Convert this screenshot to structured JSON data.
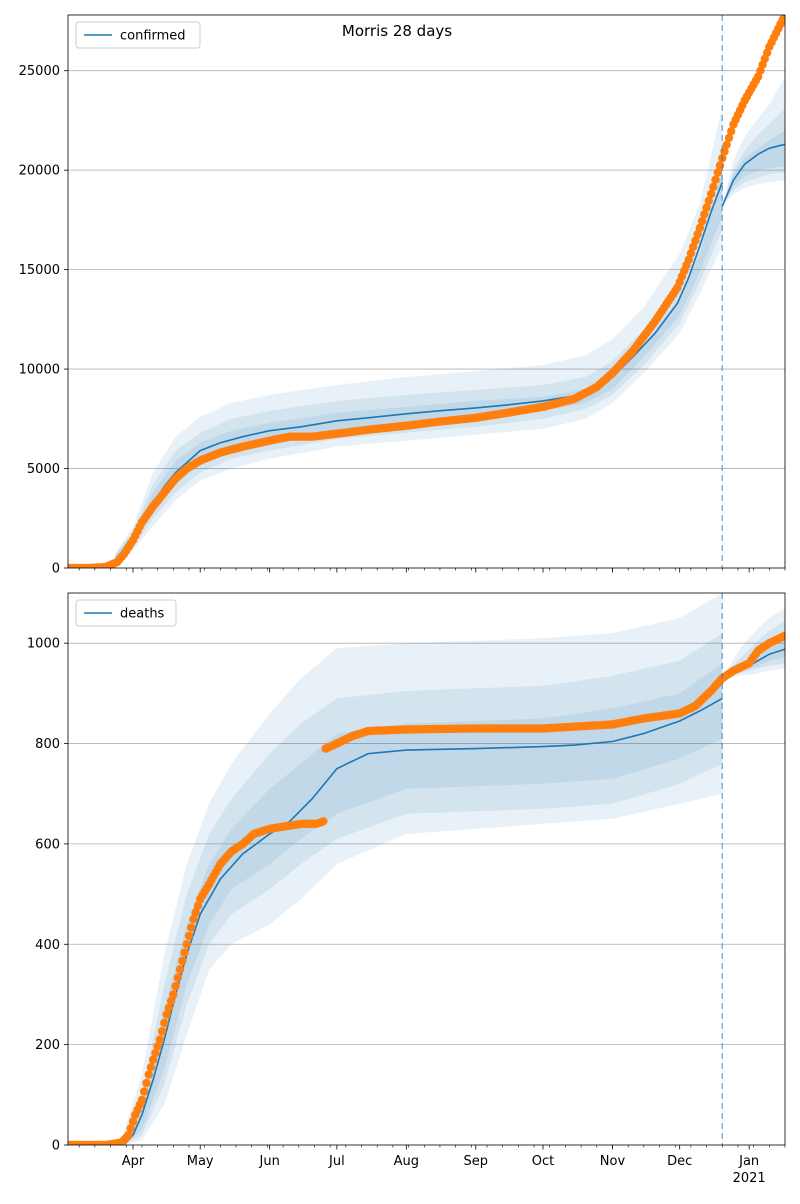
{
  "colors": {
    "model": "#1f77b4",
    "observed": "#ff7f0e",
    "band": "#1f77b4",
    "grid": "#b0b0b0",
    "forecast_line": "#1f77b4"
  },
  "x_tick_labels": [
    "Apr",
    "May",
    "Jun",
    "Jul",
    "Aug",
    "Sep",
    "Oct",
    "Nov",
    "Dec",
    "Jan"
  ],
  "x_year_label": "2021",
  "chart_data": [
    {
      "type": "line",
      "title": "Morris 28 days",
      "xlabel": "",
      "ylabel": "",
      "legend": "upper-left",
      "grid": "y-major",
      "x_range": [
        "2020-03-03",
        "2021-01-17"
      ],
      "forecast_start": "2020-12-20",
      "ylim": [
        0,
        27800
      ],
      "yticks": [
        0,
        5000,
        10000,
        15000,
        20000,
        25000
      ],
      "series": [
        {
          "name": "confirmed",
          "kind": "model-median",
          "x": [
            "2020-03-27",
            "2020-04-01",
            "2020-04-05",
            "2020-04-10",
            "2020-04-15",
            "2020-04-20",
            "2020-04-25",
            "2020-05-01",
            "2020-05-10",
            "2020-05-20",
            "2020-06-01",
            "2020-06-15",
            "2020-07-01",
            "2020-07-15",
            "2020-08-01",
            "2020-08-15",
            "2020-09-01",
            "2020-09-15",
            "2020-10-01",
            "2020-10-15",
            "2020-10-25",
            "2020-11-01",
            "2020-11-10",
            "2020-11-20",
            "2020-11-30",
            "2020-12-05",
            "2020-12-10",
            "2020-12-15",
            "2020-12-20"
          ],
          "y": [
            500,
            1300,
            2200,
            3200,
            4100,
            4800,
            5300,
            5900,
            6300,
            6600,
            6900,
            7100,
            7400,
            7550,
            7750,
            7900,
            8050,
            8200,
            8400,
            8650,
            9000,
            9600,
            10600,
            11800,
            13300,
            14600,
            16200,
            17900,
            19400
          ]
        },
        {
          "kind": "model-forecast",
          "x": [
            "2020-12-20",
            "2020-12-25",
            "2020-12-30",
            "2021-01-05",
            "2021-01-10",
            "2021-01-17"
          ],
          "y": [
            18200,
            19500,
            20300,
            20800,
            21100,
            21300
          ]
        },
        {
          "kind": "model-band",
          "x": [
            "2020-03-24",
            "2020-04-01",
            "2020-04-10",
            "2020-04-20",
            "2020-05-01",
            "2020-05-15",
            "2020-06-01",
            "2020-07-01",
            "2020-08-01",
            "2020-09-01",
            "2020-10-01",
            "2020-10-20",
            "2020-11-01",
            "2020-11-15",
            "2020-12-01",
            "2020-12-10",
            "2020-12-20"
          ],
          "bands": [
            {
              "lower": [
                50,
                900,
                2100,
                3400,
                4400,
                5000,
                5500,
                6100,
                6400,
                6700,
                7000,
                7500,
                8300,
                9800,
                11800,
                13800,
                16200
              ],
              "upper": [
                700,
                2100,
                4800,
                6600,
                7600,
                8300,
                8700,
                9200,
                9600,
                9900,
                10200,
                10700,
                11500,
                13100,
                15800,
                18300,
                23200
              ]
            },
            {
              "lower": [
                80,
                1000,
                2500,
                3800,
                4800,
                5500,
                5900,
                6500,
                6800,
                7100,
                7500,
                8000,
                8700,
                10200,
                12300,
                14400,
                17000
              ],
              "upper": [
                650,
                1900,
                4200,
                5900,
                6800,
                7500,
                7900,
                8400,
                8700,
                8950,
                9200,
                9600,
                10400,
                12000,
                14500,
                16800,
                21200
              ]
            },
            {
              "lower": [
                120,
                1100,
                2800,
                4200,
                5200,
                5900,
                6300,
                6900,
                7200,
                7500,
                7900,
                8300,
                9000,
                10600,
                12700,
                14900,
                17700
              ],
              "upper": [
                600,
                1700,
                3800,
                5400,
                6300,
                6900,
                7300,
                7800,
                8100,
                8400,
                8600,
                9000,
                9700,
                11200,
                13600,
                15800,
                20000
              ]
            }
          ]
        },
        {
          "kind": "model-band-forecast",
          "x": [
            "2020-12-20",
            "2020-12-25",
            "2020-12-30",
            "2021-01-05",
            "2021-01-10",
            "2021-01-17"
          ],
          "bands": [
            {
              "lower": [
                18200,
                18800,
                19100,
                19300,
                19400,
                19500
              ],
              "upper": [
                18200,
                20500,
                21700,
                22600,
                23300,
                24700
              ]
            },
            {
              "lower": [
                18200,
                19000,
                19400,
                19600,
                19800,
                19900
              ],
              "upper": [
                18200,
                20000,
                21000,
                21800,
                22300,
                23100
              ]
            },
            {
              "lower": [
                18200,
                19200,
                19700,
                20000,
                20100,
                20200
              ],
              "upper": [
                18200,
                19800,
                20600,
                21100,
                21500,
                22000
              ]
            }
          ]
        },
        {
          "kind": "observed",
          "x": [
            "2020-03-03",
            "2020-03-12",
            "2020-03-20",
            "2020-03-25",
            "2020-03-28",
            "2020-04-01",
            "2020-04-05",
            "2020-04-10",
            "2020-04-15",
            "2020-04-20",
            "2020-04-25",
            "2020-05-01",
            "2020-05-10",
            "2020-05-20",
            "2020-06-01",
            "2020-06-10",
            "2020-06-20",
            "2020-07-01",
            "2020-07-15",
            "2020-08-01",
            "2020-08-15",
            "2020-09-01",
            "2020-09-15",
            "2020-10-01",
            "2020-10-15",
            "2020-10-25",
            "2020-11-01",
            "2020-11-10",
            "2020-11-20",
            "2020-11-30",
            "2020-12-05",
            "2020-12-10",
            "2020-12-15",
            "2020-12-20",
            "2020-12-25",
            "2020-12-30",
            "2021-01-05",
            "2021-01-10",
            "2021-01-17"
          ],
          "y": [
            0,
            0,
            50,
            300,
            700,
            1400,
            2300,
            3100,
            3800,
            4500,
            5000,
            5400,
            5800,
            6100,
            6400,
            6600,
            6600,
            6750,
            6950,
            7150,
            7350,
            7550,
            7800,
            8100,
            8500,
            9100,
            9800,
            10900,
            12400,
            14100,
            15500,
            17100,
            18800,
            20600,
            22300,
            23500,
            24700,
            26200,
            27800
          ]
        }
      ]
    },
    {
      "type": "line",
      "title": "",
      "xlabel": "",
      "ylabel": "",
      "legend": "upper-left",
      "grid": "y-major",
      "x_range": [
        "2020-03-03",
        "2021-01-17"
      ],
      "forecast_start": "2020-12-20",
      "ylim": [
        0,
        1100
      ],
      "yticks": [
        0,
        200,
        400,
        600,
        800,
        1000
      ],
      "series": [
        {
          "name": "deaths",
          "kind": "model-median",
          "x": [
            "2020-03-28",
            "2020-04-01",
            "2020-04-05",
            "2020-04-10",
            "2020-04-15",
            "2020-04-20",
            "2020-04-25",
            "2020-05-01",
            "2020-05-10",
            "2020-05-20",
            "2020-06-01",
            "2020-06-10",
            "2020-06-20",
            "2020-07-01",
            "2020-07-15",
            "2020-08-01",
            "2020-09-01",
            "2020-10-01",
            "2020-10-15",
            "2020-11-01",
            "2020-11-15",
            "2020-12-01",
            "2020-12-10",
            "2020-12-20"
          ],
          "y": [
            0,
            20,
            60,
            130,
            210,
            300,
            380,
            460,
            530,
            580,
            620,
            645,
            690,
            750,
            780,
            787,
            790,
            794,
            797,
            804,
            820,
            845,
            865,
            890
          ]
        },
        {
          "kind": "model-forecast",
          "x": [
            "2020-12-20",
            "2020-12-28",
            "2021-01-05",
            "2021-01-10",
            "2021-01-17"
          ],
          "y": [
            930,
            945,
            965,
            978,
            988
          ]
        },
        {
          "kind": "model-band",
          "x": [
            "2020-03-28",
            "2020-04-05",
            "2020-04-15",
            "2020-04-25",
            "2020-05-05",
            "2020-05-15",
            "2020-06-01",
            "2020-06-15",
            "2020-07-01",
            "2020-08-01",
            "2020-09-01",
            "2020-10-01",
            "2020-11-01",
            "2020-12-01",
            "2020-12-20"
          ],
          "bands": [
            {
              "lower": [
                0,
                10,
                80,
                220,
                350,
                400,
                440,
                490,
                560,
                620,
                630,
                640,
                650,
                680,
                700
              ],
              "upper": [
                30,
                140,
                380,
                560,
                680,
                760,
                860,
                930,
                990,
                1000,
                1005,
                1010,
                1020,
                1050,
                1100
              ]
            },
            {
              "lower": [
                0,
                20,
                120,
                280,
                400,
                460,
                510,
                560,
                610,
                660,
                665,
                670,
                680,
                720,
                760
              ],
              "upper": [
                20,
                100,
                320,
                500,
                620,
                690,
                780,
                840,
                890,
                905,
                910,
                915,
                935,
                965,
                1020
              ]
            },
            {
              "lower": [
                0,
                30,
                150,
                320,
                440,
                510,
                560,
                610,
                660,
                710,
                715,
                720,
                730,
                770,
                810
              ],
              "upper": [
                10,
                70,
                270,
                440,
                560,
                630,
                710,
                760,
                820,
                840,
                845,
                850,
                870,
                900,
                960
              ]
            }
          ]
        },
        {
          "kind": "model-band-forecast",
          "x": [
            "2020-12-20",
            "2020-12-28",
            "2021-01-05",
            "2021-01-10",
            "2021-01-17"
          ],
          "bands": [
            {
              "lower": [
                930,
                935,
                940,
                945,
                950
              ],
              "upper": [
                930,
                990,
                1030,
                1050,
                1070
              ]
            },
            {
              "lower": [
                930,
                940,
                950,
                955,
                960
              ],
              "upper": [
                930,
                970,
                1005,
                1025,
                1045
              ]
            },
            {
              "lower": [
                930,
                945,
                955,
                965,
                972
              ],
              "upper": [
                930,
                955,
                985,
                1000,
                1015
              ]
            }
          ]
        },
        {
          "kind": "observed",
          "x": [
            "2020-03-03",
            "2020-03-20",
            "2020-03-27",
            "2020-03-30",
            "2020-04-02",
            "2020-04-05",
            "2020-04-08",
            "2020-04-10",
            "2020-04-13",
            "2020-04-16",
            "2020-04-19",
            "2020-04-22",
            "2020-04-25",
            "2020-04-28",
            "2020-05-01",
            "2020-05-05",
            "2020-05-10",
            "2020-05-15",
            "2020-05-20",
            "2020-05-25",
            "2020-06-01",
            "2020-06-08",
            "2020-06-15",
            "2020-06-22",
            "2020-06-25",
            "2020-06-26",
            "2020-07-01",
            "2020-07-08",
            "2020-07-15",
            "2020-08-01",
            "2020-09-01",
            "2020-10-01",
            "2020-11-01",
            "2020-11-15",
            "2020-12-01",
            "2020-12-08",
            "2020-12-15",
            "2020-12-20",
            "2020-12-25",
            "2021-01-01",
            "2021-01-05",
            "2021-01-10",
            "2021-01-17"
          ],
          "y": [
            0,
            0,
            5,
            20,
            60,
            90,
            140,
            170,
            210,
            260,
            300,
            350,
            400,
            450,
            490,
            520,
            560,
            585,
            600,
            620,
            630,
            635,
            640,
            640,
            645,
            790,
            800,
            815,
            825,
            828,
            830,
            830,
            838,
            850,
            860,
            875,
            905,
            930,
            945,
            960,
            985,
            1000,
            1015
          ]
        }
      ]
    }
  ]
}
